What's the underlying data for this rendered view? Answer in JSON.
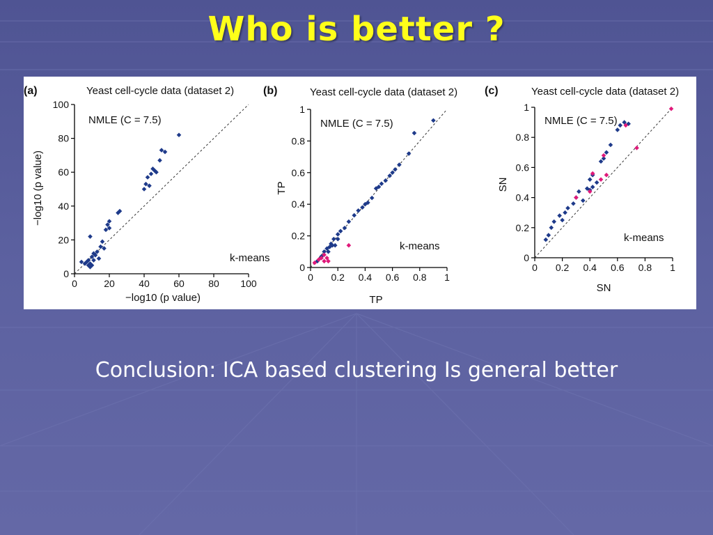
{
  "slide": {
    "title": "Who is better ?",
    "conclusion": "Conclusion: ICA based clustering Is general better"
  },
  "colors": {
    "background": "#5a5f9c",
    "title": "#ffff1a",
    "navy_points": "#1e3a8a",
    "magenta_points": "#e0197a"
  },
  "chart_data": [
    {
      "type": "scatter",
      "panel_label": "(a)",
      "title": "Yeast cell-cycle data (dataset 2)",
      "xlabel": "−log10 (p value)",
      "ylabel": "−log10 (p value)",
      "top_left_label": "NMLE (C = 7.5)",
      "bottom_right_label": "k-means",
      "xlim": [
        0,
        100
      ],
      "ylim": [
        0,
        100
      ],
      "xticks": [
        "0",
        "20",
        "40",
        "60",
        "80",
        "100"
      ],
      "yticks": [
        "0",
        "20",
        "40",
        "60",
        "80",
        "100"
      ],
      "diagonal": true,
      "series": [
        {
          "color": "navy",
          "points": [
            [
              4,
              7
            ],
            [
              6,
              6
            ],
            [
              7,
              7
            ],
            [
              8,
              5
            ],
            [
              8,
              8
            ],
            [
              9,
              4
            ],
            [
              9,
              6
            ],
            [
              10,
              5
            ],
            [
              10,
              10
            ],
            [
              11,
              8
            ],
            [
              11,
              12
            ],
            [
              12,
              11
            ],
            [
              13,
              13
            ],
            [
              14,
              9
            ],
            [
              15,
              16
            ],
            [
              16,
              19
            ],
            [
              17,
              15
            ],
            [
              18,
              26
            ],
            [
              19,
              29
            ],
            [
              20,
              27
            ],
            [
              20,
              31
            ],
            [
              25,
              36
            ],
            [
              26,
              37
            ],
            [
              9,
              22
            ],
            [
              40,
              50
            ],
            [
              41,
              53
            ],
            [
              42,
              57
            ],
            [
              43,
              52
            ],
            [
              44,
              59
            ],
            [
              45,
              62
            ],
            [
              46,
              61
            ],
            [
              47,
              60
            ],
            [
              49,
              67
            ],
            [
              50,
              73
            ],
            [
              52,
              72
            ],
            [
              60,
              82
            ]
          ]
        }
      ]
    },
    {
      "type": "scatter",
      "panel_label": "(b)",
      "title": "Yeast cell-cycle data (dataset 2)",
      "xlabel": "TP",
      "ylabel": "TP",
      "top_left_label": "NMLE (C = 7.5)",
      "bottom_right_label": "k-means",
      "xlim": [
        0,
        1
      ],
      "ylim": [
        0,
        1
      ],
      "xticks": [
        "0",
        "0.2",
        "0.4",
        "0.6",
        "0.8",
        "1"
      ],
      "yticks": [
        "0",
        "0.2",
        "0.4",
        "0.6",
        "0.8",
        "1"
      ],
      "diagonal": true,
      "series": [
        {
          "color": "navy",
          "points": [
            [
              0.05,
              0.04
            ],
            [
              0.08,
              0.07
            ],
            [
              0.1,
              0.1
            ],
            [
              0.12,
              0.12
            ],
            [
              0.14,
              0.13
            ],
            [
              0.15,
              0.15
            ],
            [
              0.17,
              0.18
            ],
            [
              0.2,
              0.21
            ],
            [
              0.22,
              0.23
            ],
            [
              0.25,
              0.25
            ],
            [
              0.28,
              0.29
            ],
            [
              0.32,
              0.33
            ],
            [
              0.35,
              0.36
            ],
            [
              0.38,
              0.38
            ],
            [
              0.4,
              0.4
            ],
            [
              0.42,
              0.41
            ],
            [
              0.45,
              0.44
            ],
            [
              0.48,
              0.5
            ],
            [
              0.5,
              0.51
            ],
            [
              0.52,
              0.53
            ],
            [
              0.55,
              0.55
            ],
            [
              0.58,
              0.58
            ],
            [
              0.6,
              0.6
            ],
            [
              0.62,
              0.62
            ],
            [
              0.65,
              0.65
            ],
            [
              0.72,
              0.72
            ],
            [
              0.76,
              0.85
            ],
            [
              0.9,
              0.93
            ],
            [
              0.16,
              0.14
            ],
            [
              0.13,
              0.1
            ],
            [
              0.18,
              0.14
            ],
            [
              0.2,
              0.18
            ]
          ]
        },
        {
          "color": "magenta",
          "points": [
            [
              0.03,
              0.03
            ],
            [
              0.06,
              0.05
            ],
            [
              0.08,
              0.06
            ],
            [
              0.1,
              0.08
            ],
            [
              0.12,
              0.06
            ],
            [
              0.13,
              0.04
            ],
            [
              0.28,
              0.14
            ],
            [
              0.1,
              0.04
            ]
          ]
        }
      ]
    },
    {
      "type": "scatter",
      "panel_label": "(c)",
      "title": "Yeast cell-cycle data (dataset 2)",
      "xlabel": "SN",
      "ylabel": "SN",
      "top_left_label": "NMLE (C = 7.5)",
      "bottom_right_label": "k-means",
      "xlim": [
        0,
        1
      ],
      "ylim": [
        0,
        1
      ],
      "xticks": [
        "0",
        "0.2",
        "0.4",
        "0.6",
        "0.8",
        "1"
      ],
      "yticks": [
        "0",
        "0.2",
        "0.4",
        "0.6",
        "0.8",
        "1"
      ],
      "diagonal": true,
      "series": [
        {
          "color": "navy",
          "points": [
            [
              0.08,
              0.12
            ],
            [
              0.1,
              0.15
            ],
            [
              0.12,
              0.2
            ],
            [
              0.14,
              0.24
            ],
            [
              0.18,
              0.28
            ],
            [
              0.2,
              0.25
            ],
            [
              0.22,
              0.3
            ],
            [
              0.24,
              0.33
            ],
            [
              0.28,
              0.36
            ],
            [
              0.3,
              0.4
            ],
            [
              0.32,
              0.44
            ],
            [
              0.35,
              0.38
            ],
            [
              0.38,
              0.46
            ],
            [
              0.4,
              0.52
            ],
            [
              0.42,
              0.55
            ],
            [
              0.45,
              0.5
            ],
            [
              0.48,
              0.64
            ],
            [
              0.5,
              0.66
            ],
            [
              0.52,
              0.7
            ],
            [
              0.55,
              0.75
            ],
            [
              0.6,
              0.85
            ],
            [
              0.62,
              0.88
            ],
            [
              0.65,
              0.9
            ],
            [
              0.68,
              0.89
            ],
            [
              0.4,
              0.45
            ],
            [
              0.42,
              0.47
            ]
          ]
        },
        {
          "color": "magenta",
          "points": [
            [
              0.3,
              0.4
            ],
            [
              0.42,
              0.56
            ],
            [
              0.4,
              0.44
            ],
            [
              0.48,
              0.52
            ],
            [
              0.52,
              0.55
            ],
            [
              0.5,
              0.68
            ],
            [
              0.66,
              0.88
            ],
            [
              0.74,
              0.73
            ],
            [
              0.99,
              0.99
            ]
          ]
        }
      ]
    }
  ]
}
